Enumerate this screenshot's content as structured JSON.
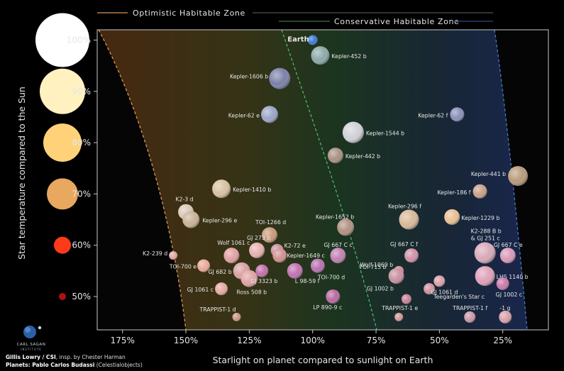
{
  "chart_data": {
    "type": "scatter",
    "xlabel": "Starlight on planet compared to sunlight on Earth",
    "ylabel": "Star temperature compared to the Sun",
    "x_ticks": [
      "175%",
      "150%",
      "125%",
      "100%",
      "75%",
      "50%",
      "25%"
    ],
    "x_tick_values": [
      175,
      150,
      125,
      100,
      75,
      50,
      25
    ],
    "y_ticks": [
      "100%",
      "90%",
      "80%",
      "70%",
      "60%",
      "50%"
    ],
    "y_tick_values": [
      100,
      90,
      80,
      70,
      60,
      50
    ],
    "xlim": [
      185,
      7
    ],
    "ylim": [
      43.5,
      102
    ],
    "x_reversed": true,
    "zones": [
      {
        "name": "Optimistic Habitable Zone",
        "color": "#e8a060"
      },
      {
        "name": "Conservative Habitable Zone",
        "color": "#58c28a"
      }
    ],
    "star_legend": [
      {
        "label": "100%",
        "color": "#ffffff"
      },
      {
        "label": "90%",
        "color": "#fff2c0"
      },
      {
        "label": "80%",
        "color": "#ffd27a"
      },
      {
        "label": "70%",
        "color": "#e8a860"
      },
      {
        "label": "60%",
        "color": "#ff3a1a"
      },
      {
        "label": "50%",
        "color": "#b01010"
      }
    ],
    "planets": [
      {
        "name": "Earth",
        "x": 100,
        "y": 100,
        "color": "#3a7bd5"
      },
      {
        "name": "Kepler-452 b",
        "x": 97,
        "y": 97,
        "color": "#8aa8a8"
      },
      {
        "name": "Kepler-1606 b",
        "x": 113,
        "y": 92.5,
        "color": "#7a7fa8"
      },
      {
        "name": "Kepler-62 e",
        "x": 117,
        "y": 85.5,
        "color": "#9aa4c8"
      },
      {
        "name": "Kepler-62 f",
        "x": 43,
        "y": 85.5,
        "color": "#8a8fb8"
      },
      {
        "name": "Kepler-1544 b",
        "x": 84,
        "y": 82,
        "color": "#d0d0d8"
      },
      {
        "name": "Kepler-442 b",
        "x": 91,
        "y": 77.5,
        "color": "#a89080"
      },
      {
        "name": "Kepler-441 b",
        "x": 19,
        "y": 73.5,
        "color": "#b89a78"
      },
      {
        "name": "Kepler-1410 b",
        "x": 136,
        "y": 71,
        "color": "#d8c0a0"
      },
      {
        "name": "Kepler-186 f",
        "x": 34,
        "y": 70.5,
        "color": "#c8a088"
      },
      {
        "name": "K2-3 d",
        "x": 150,
        "y": 66.5,
        "color": "#d8c8b8"
      },
      {
        "name": "Kepler-296 e",
        "x": 148,
        "y": 65,
        "color": "#c8b098"
      },
      {
        "name": "Kepler-296 f",
        "x": 62,
        "y": 65,
        "color": "#d8b898"
      },
      {
        "name": "Kepler-1229 b",
        "x": 45,
        "y": 65.5,
        "color": "#e8c090"
      },
      {
        "name": "Kepler-1652 b",
        "x": 87,
        "y": 63.5,
        "color": "#b09080"
      },
      {
        "name": "TOI-1266 d",
        "x": 117,
        "y": 62,
        "color": "#c89878"
      },
      {
        "name": "K2-288 B b & GJ 251 c",
        "x": 32,
        "y": 58.5,
        "color": "#d8a8b8"
      },
      {
        "name": "GJ 667 C e",
        "x": 23,
        "y": 58,
        "color": "#d898b8"
      },
      {
        "name": "K2-239 d",
        "x": 155,
        "y": 58,
        "color": "#e0a8a0"
      },
      {
        "name": "Wolf 1061 c",
        "x": 132,
        "y": 58,
        "color": "#e0a0a0"
      },
      {
        "name": "GJ 273 b",
        "x": 122,
        "y": 59,
        "color": "#e8b0b0"
      },
      {
        "name": "K2-72 e",
        "x": 114,
        "y": 59,
        "color": "#c890a0"
      },
      {
        "name": "Kepler-1649 c",
        "x": 113,
        "y": 58,
        "color": "#d09090"
      },
      {
        "name": "GJ 667 C c",
        "x": 90,
        "y": 58,
        "color": "#c080b0"
      },
      {
        "name": "GJ 667 C f",
        "x": 61,
        "y": 58,
        "color": "#d090a8"
      },
      {
        "name": "TOI-700 e",
        "x": 143,
        "y": 56,
        "color": "#e8a898"
      },
      {
        "name": "GJ 682 b",
        "x": 128,
        "y": 55,
        "color": "#d8a0a0"
      },
      {
        "name": "Ross 508 b",
        "x": 125,
        "y": 53.5,
        "color": "#e0a0a0"
      },
      {
        "name": "GJ 3323 b",
        "x": 120,
        "y": 55,
        "color": "#c070a8"
      },
      {
        "name": "L 98-59 f",
        "x": 107,
        "y": 55,
        "color": "#c070b0"
      },
      {
        "name": "TOI-700 d",
        "x": 98,
        "y": 56,
        "color": "#b870b0"
      },
      {
        "name": "Wolf 1069 b",
        "x": 66,
        "y": 55,
        "color": "#d08898"
      },
      {
        "name": "TOI-715 b",
        "x": 67,
        "y": 54,
        "color": "#c890a0"
      },
      {
        "name": "LHS 1140 b",
        "x": 32,
        "y": 54,
        "color": "#e0a0b8"
      },
      {
        "name": "GJ 1061 c",
        "x": 136,
        "y": 51.5,
        "color": "#e8a8a0"
      },
      {
        "name": "LP 890-9 c",
        "x": 92,
        "y": 50,
        "color": "#b868a0"
      },
      {
        "name": "GJ 1002 b",
        "x": 63,
        "y": 49.5,
        "color": "#c88098"
      },
      {
        "name": "Teegarden's Star c",
        "x": 54,
        "y": 51.5,
        "color": "#d090a0"
      },
      {
        "name": "GJ 1061 d",
        "x": 50,
        "y": 53,
        "color": "#d8a0a8"
      },
      {
        "name": "GJ 1002 c",
        "x": 25,
        "y": 52.5,
        "color": "#c878a8"
      },
      {
        "name": "TRAPPIST-1 d",
        "x": 130,
        "y": 46,
        "color": "#c89888"
      },
      {
        "name": "TRAPPIST-1 e",
        "x": 66,
        "y": 46,
        "color": "#d09898"
      },
      {
        "name": "TRAPPIST-1 f",
        "x": 38,
        "y": 46,
        "color": "#c898a8"
      },
      {
        "name": "-1 g",
        "x": 24,
        "y": 46,
        "color": "#d8a0a8"
      }
    ]
  },
  "credits": {
    "line1_bold": "Gillis Lowry / CSI",
    "line1_rest": ", insp. by Chester Harman",
    "line2_bold": "Planets: Pablo Carlos Budassi",
    "line2_rest": " (Celestialobjects)"
  },
  "logo": {
    "name": "CARL SAGAN",
    "sub": "INSTITUTE"
  }
}
